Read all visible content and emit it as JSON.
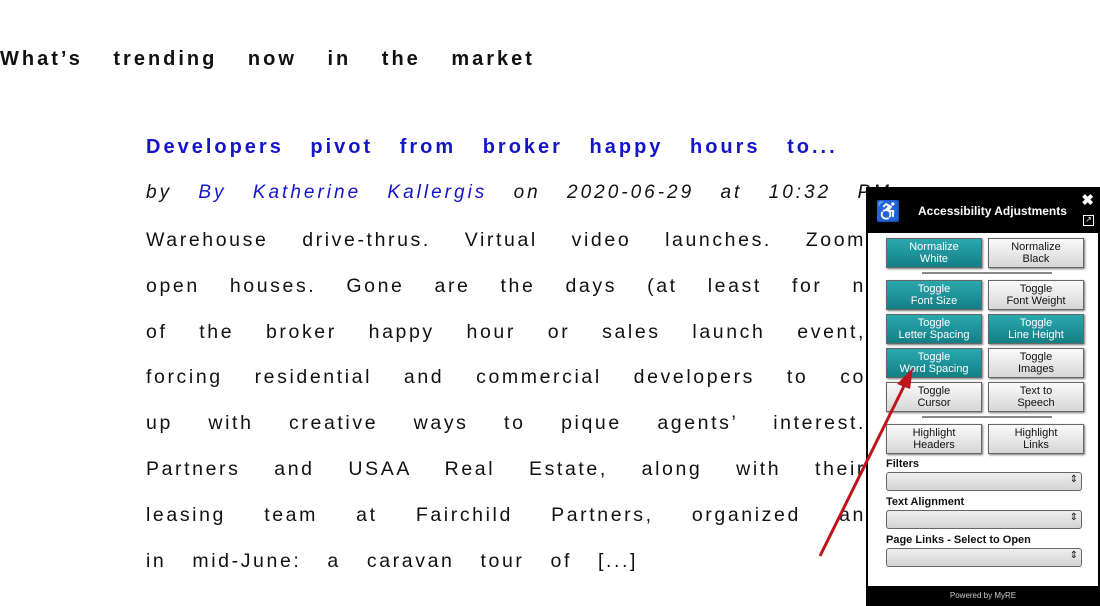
{
  "heading": "What’s trending now in the market",
  "article": {
    "title": "Developers pivot from broker happy hours to...",
    "by": "by",
    "author": "By Katherine Kallergis",
    "on": "on",
    "date": "2020-06-29",
    "at": "at",
    "time": "10:32 PM",
    "lines": [
      "Warehouse drive-thrus. Virtual video launches. Zoom",
      "open houses. Gone are the days (at least for n",
      "of the broker happy hour or sales launch event,",
      "forcing residential and commercial developers to co",
      "up with creative ways to pique agents’ interest.",
      "Partners and USAA Real Estate, along with their",
      "leasing team at Fairchild Partners, organized an",
      "in mid-June: a caravan tour of [...]"
    ]
  },
  "panel": {
    "title": "Accessibility Adjustments",
    "close": "✖",
    "popout": "↗",
    "wheelchair": "♿",
    "buttons": [
      [
        {
          "l1": "Normalize",
          "l2": "White",
          "on": true
        },
        {
          "l1": "Normalize",
          "l2": "Black",
          "on": false
        }
      ],
      [
        {
          "l1": "Toggle",
          "l2": "Font Size",
          "on": true
        },
        {
          "l1": "Toggle",
          "l2": "Font Weight",
          "on": false
        }
      ],
      [
        {
          "l1": "Toggle",
          "l2": "Letter Spacing",
          "on": true
        },
        {
          "l1": "Toggle",
          "l2": "Line Height",
          "on": true
        }
      ],
      [
        {
          "l1": "Toggle",
          "l2": "Word Spacing",
          "on": true
        },
        {
          "l1": "Toggle",
          "l2": "Images",
          "on": false
        }
      ],
      [
        {
          "l1": "Toggle",
          "l2": "Cursor",
          "on": false
        },
        {
          "l1": "Text to",
          "l2": "Speech",
          "on": false
        }
      ],
      [
        {
          "l1": "Highlight",
          "l2": "Headers",
          "on": false
        },
        {
          "l1": "Highlight",
          "l2": "Links",
          "on": false
        }
      ]
    ],
    "filters_label": "Filters",
    "alignment_label": "Text Alignment",
    "links_label": "Page Links - Select to Open",
    "footer": "Powered by MyRE",
    "accent": "#1f9aa0"
  },
  "annotation_color": "#c0141c"
}
